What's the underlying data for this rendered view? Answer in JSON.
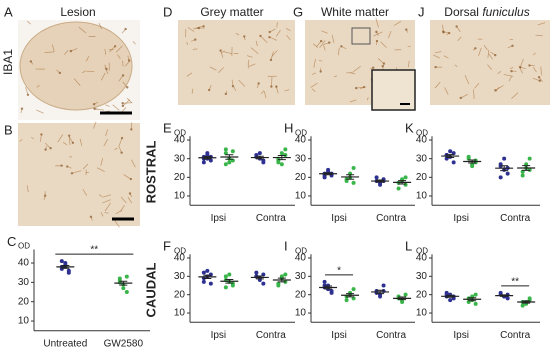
{
  "figure": {
    "stain_label": "IBA1",
    "images": [
      {
        "letter": "A",
        "title": "Lesion"
      },
      {
        "letter": "B"
      },
      {
        "letter": "D",
        "title": "Grey matter"
      },
      {
        "letter": "G",
        "title": "White matter"
      },
      {
        "letter": "J",
        "title": "Dorsal",
        "title_italic": "funiculus"
      }
    ],
    "row_labels": [
      "ROSTRAL",
      "CAUDAL"
    ]
  },
  "chart_data": [
    {
      "type": "strip",
      "panel": "C",
      "ylabel": "OD",
      "categories": [
        "Untreated",
        "GW2580"
      ],
      "ylim": [
        5,
        47
      ],
      "yticks": [
        10,
        20,
        30,
        40
      ],
      "series": [
        {
          "color": "#2e3192",
          "values": [
            [
              38,
              40,
              36,
              37,
              39,
              35,
              41,
              38
            ],
            null
          ],
          "mean": [
            38,
            null
          ],
          "sem": [
            0.7,
            null
          ]
        },
        {
          "color": "#39b54a",
          "values": [
            null,
            [
              30,
              27,
              33,
              32,
              29,
              25,
              31
            ]
          ],
          "mean": [
            null,
            29.6
          ],
          "sem": [
            null,
            1.0
          ]
        }
      ],
      "annotations": [
        {
          "text": "**",
          "x": [
            "Untreated",
            "GW2580"
          ]
        }
      ]
    },
    {
      "type": "strip",
      "panel": "E",
      "ylabel": "OD",
      "categories": [
        "Ipsi",
        "Contra"
      ],
      "ylim": [
        5,
        42
      ],
      "yticks": [
        10,
        20,
        30,
        40
      ],
      "series": [
        {
          "color": "#2e3192",
          "values": [
            [
              31,
              32,
              29,
              30,
              33,
              31,
              28,
              30
            ],
            [
              31,
              30,
              29,
              32,
              33,
              28,
              31
            ]
          ],
          "mean": [
            30.5,
            30.6
          ],
          "sem": [
            0.6,
            0.7
          ]
        },
        {
          "color": "#39b54a",
          "values": [
            [
              27,
              30,
              34,
              33,
              28,
              29,
              35
            ],
            [
              29,
              33,
              35,
              30,
              27,
              32,
              28
            ]
          ],
          "mean": [
            30.9,
            30.6
          ],
          "sem": [
            1.2,
            1.1
          ]
        }
      ],
      "annotations": []
    },
    {
      "type": "strip",
      "panel": "F",
      "ylabel": "OD",
      "categories": [
        "Ipsi",
        "Contra"
      ],
      "ylim": [
        5,
        42
      ],
      "yticks": [
        10,
        20,
        30,
        40
      ],
      "series": [
        {
          "color": "#2e3192",
          "values": [
            [
              29,
              33,
              31,
              27,
              30,
              26,
              32
            ],
            [
              30,
              29,
              31,
              32,
              28,
              26,
              30
            ]
          ],
          "mean": [
            29.7,
            29.4
          ],
          "sem": [
            0.9,
            0.8
          ]
        },
        {
          "color": "#39b54a",
          "values": [
            [
              28,
              27,
              25,
              30,
              31,
              26,
              24
            ],
            [
              26,
              29,
              31,
              25,
              30,
              27
            ]
          ],
          "mean": [
            27.3,
            28
          ],
          "sem": [
            1,
            1
          ]
        }
      ],
      "annotations": []
    },
    {
      "type": "strip",
      "panel": "H",
      "ylabel": "OD",
      "categories": [
        "Ipsi",
        "Contra"
      ],
      "ylim": [
        5,
        42
      ],
      "yticks": [
        10,
        20,
        30,
        40
      ],
      "series": [
        {
          "color": "#2e3192",
          "values": [
            [
              22,
              23,
              21,
              20,
              24,
              22,
              21
            ],
            [
              18,
              17,
              19,
              20,
              16,
              18
            ]
          ],
          "mean": [
            21.9,
            18
          ],
          "sem": [
            0.5,
            0.6
          ]
        },
        {
          "color": "#39b54a",
          "values": [
            [
              19,
              22,
              25,
              18,
              20,
              17
            ],
            [
              17,
              19,
              20,
              14,
              18,
              16
            ]
          ],
          "mean": [
            20.2,
            17.3
          ],
          "sem": [
            1.2,
            0.9
          ]
        }
      ],
      "annotations": []
    },
    {
      "type": "strip",
      "panel": "I",
      "ylabel": "OD",
      "categories": [
        "Ipsi",
        "Contra"
      ],
      "ylim": [
        5,
        42
      ],
      "yticks": [
        10,
        20,
        30,
        40
      ],
      "series": [
        {
          "color": "#2e3192",
          "values": [
            [
              24,
              25,
              22,
              27,
              23,
              21,
              25
            ],
            [
              22,
              20,
              25,
              21,
              19,
              22
            ]
          ],
          "mean": [
            23.9,
            21.5
          ],
          "sem": [
            0.8,
            0.9
          ]
        },
        {
          "color": "#39b54a",
          "values": [
            [
              19,
              21,
              23,
              17,
              20,
              18
            ],
            [
              18,
              17,
              20,
              19,
              16
            ]
          ],
          "mean": [
            19.7,
            18
          ],
          "sem": [
            0.9,
            0.7
          ]
        }
      ],
      "annotations": [
        {
          "text": "*",
          "x": [
            "Ipsi"
          ]
        }
      ]
    },
    {
      "type": "strip",
      "panel": "K",
      "ylabel": "OD",
      "categories": [
        "Ipsi",
        "Contra"
      ],
      "ylim": [
        5,
        42
      ],
      "yticks": [
        10,
        20,
        30,
        40
      ],
      "series": [
        {
          "color": "#2e3192",
          "values": [
            [
              32,
              31,
              33,
              30,
              34,
              28,
              32
            ],
            [
              27,
              24,
              22,
              26,
              30,
              25,
              20
            ]
          ],
          "mean": [
            31.4,
            24.9
          ],
          "sem": [
            0.8,
            1.3
          ]
        },
        {
          "color": "#39b54a",
          "values": [
            [
              30,
              27,
              28,
              31,
              26,
              29
            ],
            [
              23,
              27,
              30,
              21,
              25,
              24
            ]
          ],
          "mean": [
            28.5,
            25
          ],
          "sem": [
            0.8,
            1.3
          ]
        }
      ],
      "annotations": []
    },
    {
      "type": "strip",
      "panel": "L",
      "ylabel": "OD",
      "categories": [
        "Ipsi",
        "Contra"
      ],
      "ylim": [
        5,
        42
      ],
      "yticks": [
        10,
        20,
        30,
        40
      ],
      "series": [
        {
          "color": "#2e3192",
          "values": [
            [
              19,
              20,
              18,
              21,
              17,
              19,
              20
            ],
            [
              20,
              19,
              18,
              21,
              19,
              20
            ]
          ],
          "mean": [
            19.1,
            19.5
          ],
          "sem": [
            0.5,
            0.4
          ]
        },
        {
          "color": "#39b54a",
          "values": [
            [
              18,
              17,
              20,
              16,
              19,
              15
            ],
            [
              16,
              15,
              17,
              14,
              16,
              18
            ]
          ],
          "mean": [
            17.5,
            16
          ],
          "sem": [
            0.8,
            0.6
          ]
        }
      ],
      "annotations": [
        {
          "text": "**",
          "x": [
            "Contra"
          ]
        }
      ]
    }
  ]
}
